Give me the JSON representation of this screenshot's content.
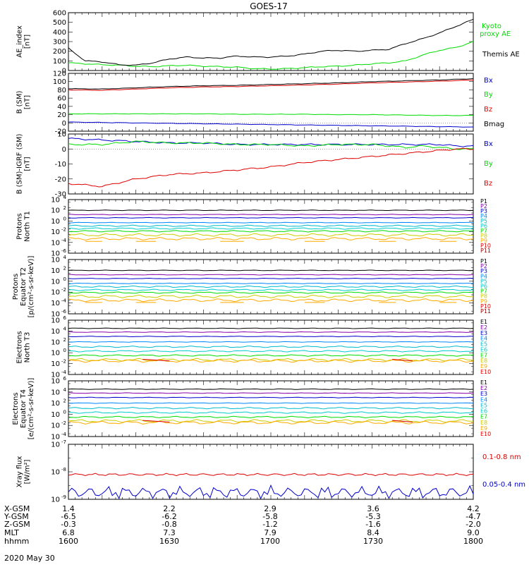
{
  "title": "GOES-17",
  "date": "2020 May 30",
  "footer": {
    "row_labels": [
      "X-GSM",
      "Y-GSM",
      "Z-GSM",
      "MLT",
      "hhmm"
    ],
    "columns": [
      [
        "1.4",
        "-6.5",
        "-0.3",
        "6.8",
        "1600"
      ],
      [
        "2.2",
        "-6.2",
        "-0.8",
        "7.3",
        "1630"
      ],
      [
        "2.9",
        "-5.8",
        "-1.2",
        "7.9",
        "1700"
      ],
      [
        "3.6",
        "-5.3",
        "-1.6",
        "8.4",
        "1730"
      ],
      [
        "4.2",
        "-4.7",
        "-2.0",
        "9.0",
        "1800"
      ]
    ]
  },
  "colors": {
    "black": "#000000",
    "green": "#00dd00",
    "blue": "#0000cc",
    "red": "#dd0000",
    "p_colors": [
      "#000000",
      "#8800aa",
      "#0000cc",
      "#0088ff",
      "#00bbcc",
      "#00cccc",
      "#00dd00",
      "#cccc00",
      "#ffaa00",
      "#dd0000",
      "#990000"
    ],
    "e_colors": [
      "#000000",
      "#8800aa",
      "#0000cc",
      "#0088ff",
      "#00bbcc",
      "#00cccc",
      "#00dd00",
      "#cccc00",
      "#ffaa00",
      "#dd0000"
    ]
  },
  "chart_data": [
    {
      "type": "line",
      "ylabel": "AE_index\n[nT]",
      "ylim": [
        0,
        600
      ],
      "yticks": [
        "600",
        "500",
        "400",
        "300",
        "200",
        "100",
        "0"
      ],
      "x": [
        0,
        5,
        10,
        15,
        20,
        25,
        30,
        35,
        40,
        45,
        50,
        55,
        60,
        65,
        70,
        75,
        80,
        85,
        90,
        95,
        100,
        105,
        110,
        115,
        120
      ],
      "series": [
        {
          "name": "Kyoto proxy AE",
          "color": "green",
          "values": [
            80,
            70,
            60,
            55,
            45,
            40,
            50,
            55,
            45,
            40,
            35,
            20,
            15,
            20,
            30,
            40,
            45,
            55,
            70,
            80,
            100,
            160,
            210,
            240,
            300
          ]
        },
        {
          "name": "Themis AE",
          "color": "black",
          "values": [
            230,
            100,
            90,
            60,
            55,
            80,
            120,
            140,
            130,
            130,
            150,
            140,
            140,
            150,
            170,
            200,
            210,
            200,
            210,
            220,
            280,
            330,
            390,
            460,
            530
          ]
        }
      ]
    },
    {
      "type": "line",
      "ylabel": "B (SM)\n[nT]",
      "ylim": [
        -20,
        120
      ],
      "yticks": [
        "120",
        "100",
        "80",
        "60",
        "40",
        "20",
        "0",
        "-20"
      ],
      "x": [
        0,
        10,
        20,
        30,
        40,
        50,
        60,
        70,
        80,
        90,
        100,
        110,
        120
      ],
      "series": [
        {
          "name": "Bx",
          "color": "blue",
          "values": [
            2,
            1,
            0,
            -1,
            -2,
            -3,
            -4,
            -5,
            -6,
            -7,
            -8,
            -9,
            -10
          ]
        },
        {
          "name": "By",
          "color": "green",
          "values": [
            22,
            22,
            22,
            22,
            22,
            21,
            21,
            21,
            20,
            20,
            19,
            18,
            18
          ]
        },
        {
          "name": "Bz",
          "color": "red",
          "values": [
            80,
            79,
            82,
            85,
            87,
            88,
            90,
            92,
            94,
            97,
            99,
            101,
            104
          ]
        },
        {
          "name": "Bmag",
          "color": "black",
          "values": [
            83,
            82,
            85,
            88,
            90,
            91,
            93,
            95,
            97,
            100,
            102,
            104,
            107
          ]
        }
      ]
    },
    {
      "type": "line",
      "ylabel": "B (SM)-IGRF (SM)\n[nT]",
      "ylim": [
        -30,
        10
      ],
      "yticks": [
        "10",
        "0",
        "-10",
        "-20",
        "-30"
      ],
      "x": [
        0,
        10,
        20,
        30,
        40,
        50,
        60,
        70,
        80,
        90,
        100,
        105,
        110,
        115,
        120
      ],
      "series": [
        {
          "name": "Bx",
          "color": "blue",
          "values": [
            7,
            6,
            5,
            4,
            4,
            3,
            3,
            3,
            3,
            3,
            3,
            3,
            3,
            2,
            2
          ]
        },
        {
          "name": "By",
          "color": "green",
          "values": [
            3,
            3,
            5,
            4,
            4,
            3,
            3,
            2,
            3,
            3,
            1,
            2,
            1,
            0,
            0
          ]
        },
        {
          "name": "Bz",
          "color": "red",
          "values": [
            -23,
            -25,
            -20,
            -17,
            -16,
            -14,
            -12,
            -9,
            -7,
            -5,
            -3,
            -2,
            -1,
            0,
            0
          ]
        }
      ]
    },
    {
      "type": "line",
      "log": true,
      "ylabel": "Protons\nNorth T1",
      "ylim": [
        -6,
        4
      ],
      "ytick_exps": [
        4,
        2,
        0,
        -2,
        -4,
        -6
      ],
      "legend": [
        "P1",
        "P2",
        "P3",
        "P4",
        "P5",
        "P6",
        "P7",
        "P8",
        "P9",
        "P10",
        "P11"
      ],
      "levels": [
        2.0,
        1.2,
        0.6,
        -0.3,
        -0.9,
        -1.4,
        -1.9,
        -2.6,
        -3.3
      ],
      "faint": [
        -3.8
      ]
    },
    {
      "type": "line",
      "log": true,
      "ylabel": "Protons\nEquator T2\n[p/(cm²-s-sr-keV)]",
      "ylim": [
        -6,
        4
      ],
      "ytick_exps": [
        4,
        2,
        0,
        -2,
        -4,
        -6
      ],
      "legend": [
        "P1",
        "P2",
        "P3",
        "P4",
        "P5",
        "P6",
        "P7",
        "P8",
        "P9",
        "P10",
        "P11"
      ],
      "levels": [
        2.0,
        1.2,
        0.5,
        -0.4,
        -1.0,
        -1.6,
        -2.1,
        -2.8,
        -3.5
      ],
      "faint": [
        -3.9
      ]
    },
    {
      "type": "line",
      "log": true,
      "ylabel": "Electrons\nNorth T3",
      "ylim": [
        -4,
        6
      ],
      "ytick_exps": [
        6,
        4,
        2,
        0,
        -2,
        -4
      ],
      "legend": [
        "E1",
        "E2",
        "E3",
        "E4",
        "E5",
        "E6",
        "E7",
        "E8",
        "E9",
        "E10"
      ],
      "levels": [
        4.5,
        3.8,
        3.0,
        2.0,
        1.1,
        0.3,
        -0.5,
        -1.3,
        -1.5
      ],
      "faint": []
    },
    {
      "type": "line",
      "log": true,
      "ylabel": "Electrons\nEquator T4\n[e/(cm²-s-sr-keV)]",
      "ylim": [
        -4,
        6
      ],
      "ytick_exps": [
        6,
        4,
        2,
        0,
        -2,
        -4
      ],
      "legend": [
        "E1",
        "E2",
        "E3",
        "E4",
        "E5",
        "E6",
        "E7",
        "E8",
        "E9",
        "E10"
      ],
      "levels": [
        4.5,
        3.8,
        3.0,
        2.0,
        1.1,
        0.3,
        -0.5,
        -1.2,
        -1.5
      ],
      "faint": []
    },
    {
      "type": "line",
      "log": true,
      "ylabel": "Xray flux\n[W/m²]",
      "ylim": [
        -9,
        -7
      ],
      "ytick_exps": [
        -7,
        -8,
        -9
      ],
      "series": [
        {
          "name": "0.1-0.8 nm",
          "color": "red",
          "level": -8.1
        },
        {
          "name": "0.05-0.4 nm",
          "color": "blue",
          "level": -8.75
        }
      ]
    }
  ]
}
